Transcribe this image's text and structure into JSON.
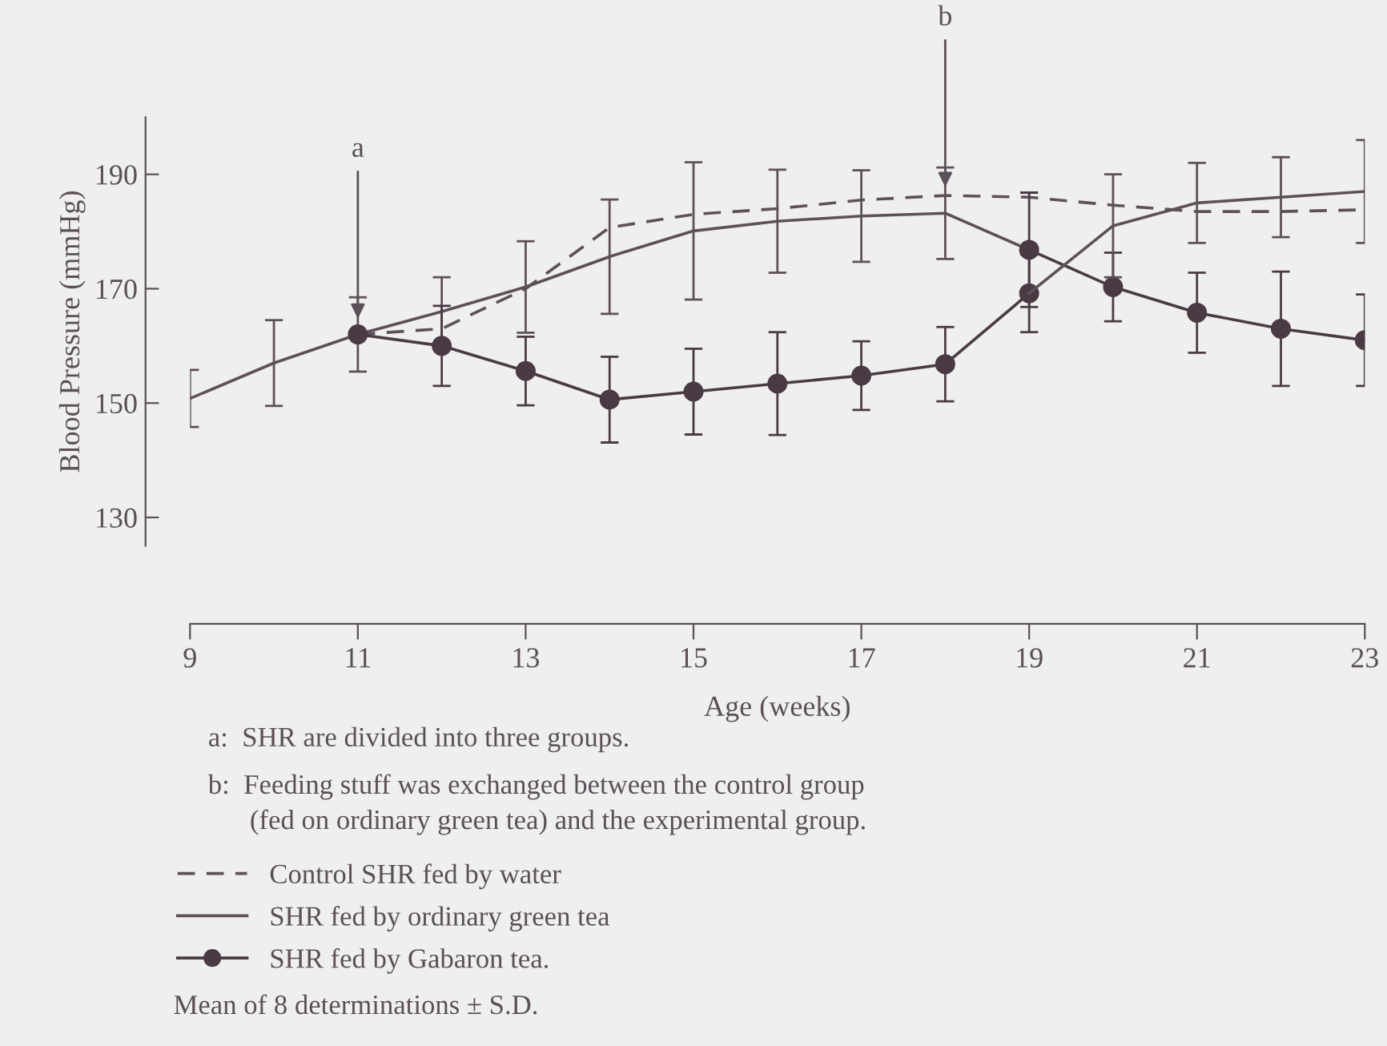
{
  "chart_data": {
    "type": "line",
    "xlabel": "Age (weeks)",
    "ylabel": "Blood Pressure (mmHg)",
    "xlim": [
      9,
      23
    ],
    "xticks": [
      9,
      11,
      13,
      15,
      17,
      19,
      21,
      23
    ],
    "ylim": [
      125,
      200
    ],
    "yticks": [
      130,
      150,
      170,
      190
    ],
    "grid": false,
    "legend": "bottom left",
    "series": [
      {
        "name": "Control SHR fed by water",
        "color": "#5e5058",
        "line_style": "dashed",
        "marker": "none",
        "x": [
          11,
          12,
          13,
          14,
          15,
          16,
          17,
          18,
          19,
          20,
          21,
          22,
          23
        ],
        "values": [
          162,
          163,
          170,
          180.7,
          183,
          184,
          185.5,
          186.3,
          186,
          184.6,
          183.5,
          183.5,
          183.8
        ]
      },
      {
        "name": "SHR fed by ordinary green tea",
        "color": "#5e5058",
        "line_style": "solid",
        "marker": "none",
        "x": [
          9,
          10,
          11,
          12,
          13,
          14,
          15,
          16,
          17,
          18,
          19
        ],
        "values": [
          150.8,
          157,
          162,
          166,
          170.3,
          175.6,
          180.1,
          181.8,
          182.7,
          183.2,
          176.8
        ],
        "errors": [
          5,
          7.5,
          6.5,
          6,
          8,
          10,
          12,
          9,
          8,
          8,
          null
        ]
      },
      {
        "name": "SHR fed by Gabaron tea.",
        "color": "#4a3a44",
        "line_style": "solid",
        "marker": "circle",
        "x": [
          11,
          12,
          13,
          14,
          15,
          16,
          17,
          18,
          19
        ],
        "values": [
          162,
          160,
          155.6,
          150.6,
          152,
          153.4,
          154.8,
          156.8,
          169.2
        ],
        "errors": [
          null,
          7,
          6,
          7.5,
          7.5,
          9,
          6,
          6.5,
          6.8
        ]
      },
      {
        "color": "#4a3a44",
        "line_style": "solid",
        "marker": "circle",
        "x": [
          19,
          20,
          21,
          22,
          23
        ],
        "values": [
          176.8,
          170.3,
          165.8,
          163,
          161
        ],
        "errors": [
          10,
          6,
          7,
          10,
          8
        ]
      },
      {
        "color": "#5e5058",
        "line_style": "solid",
        "marker": "none",
        "x": [
          19,
          20,
          21,
          22,
          23
        ],
        "values": [
          169.2,
          181,
          185,
          186,
          187
        ],
        "errors": [
          null,
          9,
          7,
          7,
          9
        ]
      }
    ],
    "annotations": [
      {
        "text": "a",
        "x": 11,
        "y": 164
      },
      {
        "text": "b",
        "x": 18,
        "y": 187
      },
      "a:  SHR are divided into three groups.",
      "b:  Feeding stuff was exchanged between the control group\n      (fed on ordinary green tea) and the experimental group.",
      "Mean of 8 determinations ± S.D."
    ]
  }
}
